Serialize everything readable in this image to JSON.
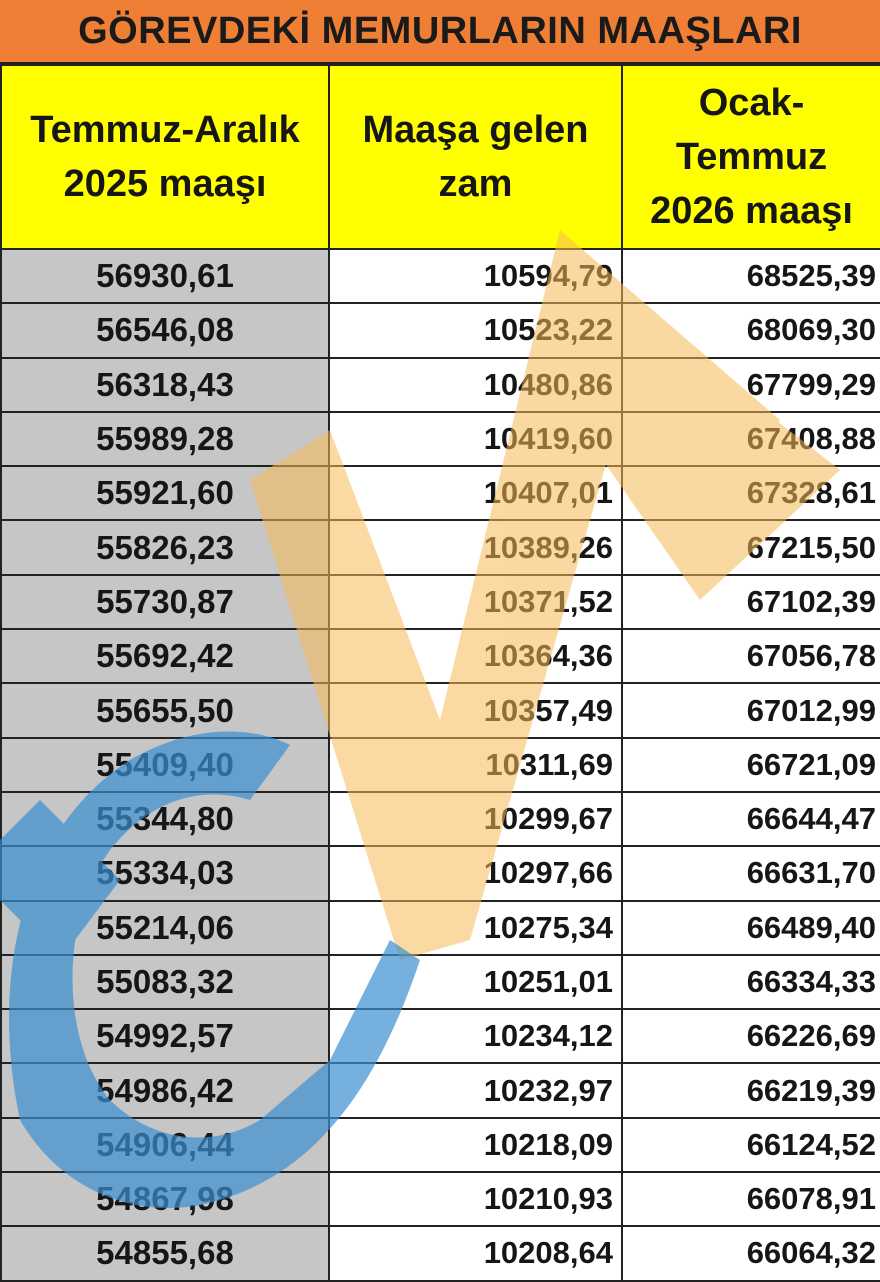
{
  "title": "GÖREVDEKİ MEMURLARIN MAAŞLARI",
  "headers": [
    [
      "Temmuz-Aralık",
      "2025 maaşı"
    ],
    [
      "Maaşa gelen",
      "zam"
    ],
    [
      "Ocak-",
      "Temmuz",
      "2026 maaşı"
    ]
  ],
  "rows": [
    [
      "56930,61",
      "10594,79",
      "68525,39"
    ],
    [
      "56546,08",
      "10523,22",
      "68069,30"
    ],
    [
      "56318,43",
      "10480,86",
      "67799,29"
    ],
    [
      "55989,28",
      "10419,60",
      "67408,88"
    ],
    [
      "55921,60",
      "10407,01",
      "67328,61"
    ],
    [
      "55826,23",
      "10389,26",
      "67215,50"
    ],
    [
      "55730,87",
      "10371,52",
      "67102,39"
    ],
    [
      "55692,42",
      "10364,36",
      "67056,78"
    ],
    [
      "55655,50",
      "10357,49",
      "67012,99"
    ],
    [
      "55409,40",
      "10311,69",
      "66721,09"
    ],
    [
      "55344,80",
      "10299,67",
      "66644,47"
    ],
    [
      "55334,03",
      "10297,66",
      "66631,70"
    ],
    [
      "55214,06",
      "10275,34",
      "66489,40"
    ],
    [
      "55083,32",
      "10251,01",
      "66334,33"
    ],
    [
      "54992,57",
      "10234,12",
      "66226,69"
    ],
    [
      "54986,42",
      "10232,97",
      "66219,39"
    ],
    [
      "54906,44",
      "10218,09",
      "66124,52"
    ],
    [
      "54867,98",
      "10210,93",
      "66078,91"
    ],
    [
      "54855,68",
      "10208,64",
      "66064,32"
    ]
  ],
  "colors": {
    "title_bg": "#ee7f35",
    "header_bg": "#ffff00",
    "first_col_bg": "#c6c6c6",
    "watermark_orange": "#f7b955",
    "watermark_blue": "#3a8fd1"
  },
  "watermark_icon": "watermark-logo"
}
